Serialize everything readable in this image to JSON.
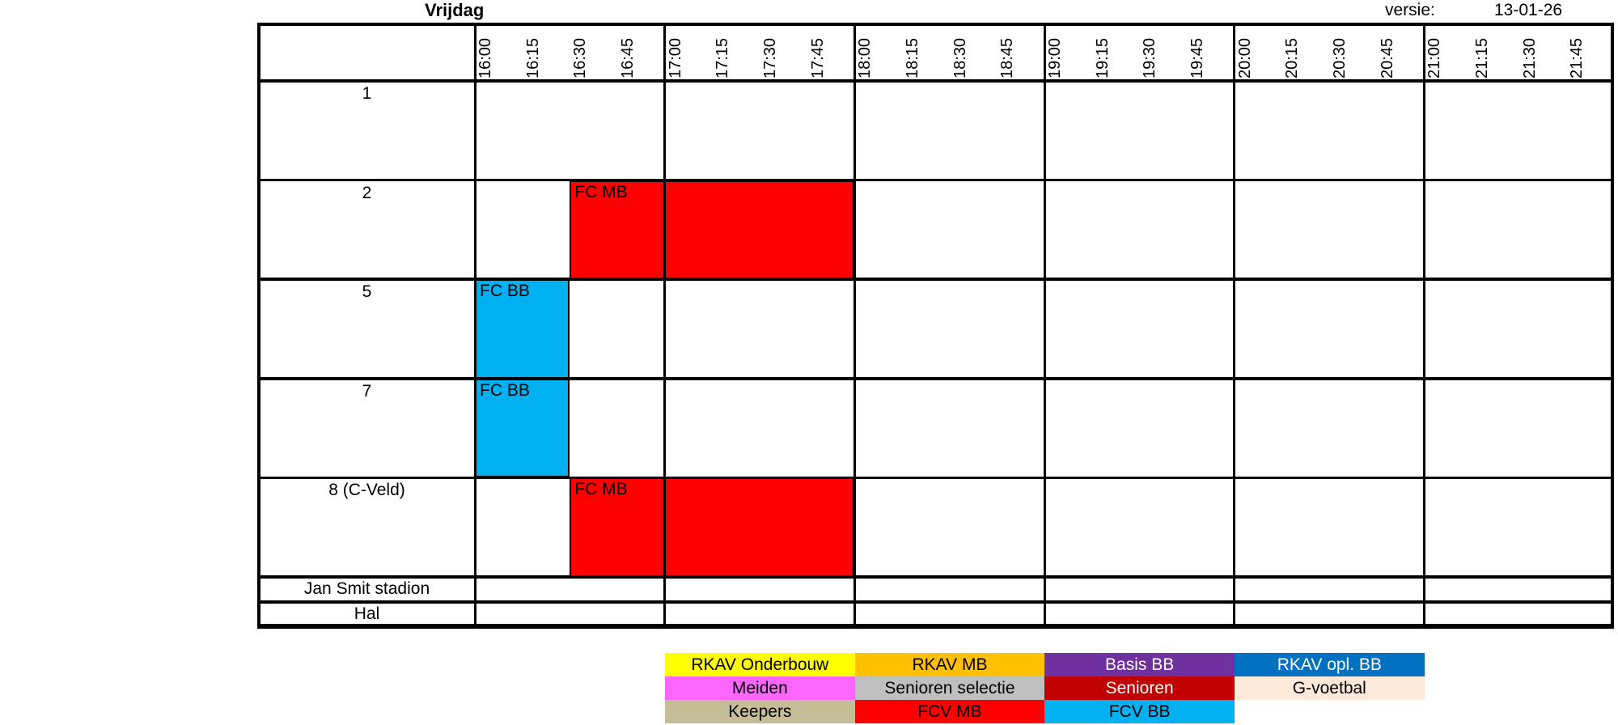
{
  "page": {
    "title": "Vrijdag",
    "versie_label": "versie:",
    "versie_value": "13-01-26"
  },
  "schedule": {
    "time_labels": [
      "16:00",
      "16:15",
      "16:30",
      "16:45",
      "17:00",
      "17:15",
      "17:30",
      "17:45",
      "18:00",
      "18:15",
      "18:30",
      "18:45",
      "19:00",
      "19:15",
      "19:30",
      "19:45",
      "20:00",
      "20:15",
      "20:30",
      "20:45",
      "21:00",
      "21:15",
      "21:30",
      "21:45"
    ],
    "row_labels": [
      "1",
      "2",
      "5",
      "7",
      "8 (C-Veld)",
      "Jan Smit stadion",
      "Hal"
    ],
    "blocks": [
      {
        "row": "2",
        "label": "FC MB",
        "color": "#FF0000",
        "start": "16:30",
        "end": "18:00"
      },
      {
        "row": "5",
        "label": "FC BB",
        "color": "#00B0F0",
        "start": "16:00",
        "end": "16:30"
      },
      {
        "row": "7",
        "label": "FC BB",
        "color": "#00B0F0",
        "start": "16:00",
        "end": "16:30"
      },
      {
        "row": "8 (C-Veld)",
        "label": "FC MB",
        "color": "#FF0000",
        "start": "16:30",
        "end": "18:00"
      }
    ]
  },
  "legend": {
    "rows": [
      [
        {
          "label": "RKAV Onderbouw",
          "color": "#FFFF00",
          "text_color": "#000000"
        },
        {
          "label": "RKAV MB",
          "color": "#FFC000",
          "text_color": "#000000"
        },
        {
          "label": "Basis BB",
          "color": "#7030A0",
          "text_color": "#FFFFFF"
        },
        {
          "label": "RKAV opl. BB",
          "color": "#0070C0",
          "text_color": "#FFFFFF"
        }
      ],
      [
        {
          "label": "Meiden",
          "color": "#FF66FF",
          "text_color": "#000000"
        },
        {
          "label": "Senioren selectie",
          "color": "#BFBFBF",
          "text_color": "#000000"
        },
        {
          "label": "Senioren",
          "color": "#C00000",
          "text_color": "#FFFFFF"
        },
        {
          "label": "G-voetbal",
          "color": "#FDE9D9",
          "text_color": "#000000"
        }
      ],
      [
        {
          "label": "Keepers",
          "color": "#C4BD97",
          "text_color": "#000000"
        },
        {
          "label": "FCV MB",
          "color": "#FF0000",
          "text_color": "#000000"
        },
        {
          "label": "FCV BB",
          "color": "#00B0F0",
          "text_color": "#000000"
        }
      ]
    ]
  }
}
